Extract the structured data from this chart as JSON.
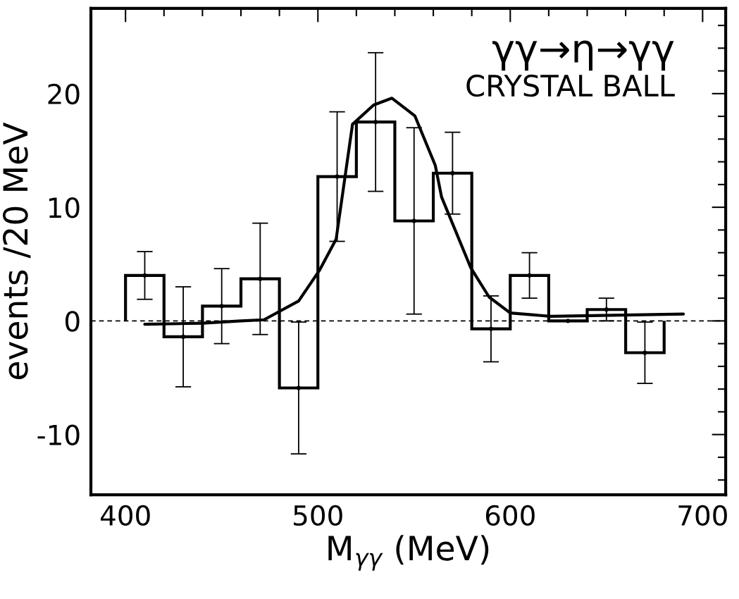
{
  "chart_data": {
    "type": "histogram",
    "xlabel": "M$_{γγ}$ (MeV)",
    "ylabel": "events /20 MeV",
    "annotations": [
      "γγ→η→γγ",
      "CRYSTAL BALL"
    ],
    "bins": [
      400,
      420,
      440,
      460,
      480,
      500,
      520,
      540,
      560,
      580,
      600,
      620,
      640,
      660,
      680
    ],
    "values": [
      4.0,
      -1.4,
      1.3,
      3.7,
      -5.9,
      12.7,
      17.5,
      8.8,
      13.0,
      -0.7,
      4.0,
      0.0,
      1.0,
      -2.8
    ],
    "color": "#000000",
    "series": [
      {
        "type": "scatter",
        "marker": "circle",
        "color": "#000000",
        "x": [
          410,
          430,
          450,
          470,
          490,
          510,
          530,
          550,
          570,
          590,
          610,
          630,
          650,
          670
        ],
        "values": [
          4.0,
          -1.4,
          1.3,
          3.7,
          -5.9,
          12.7,
          17.5,
          8.8,
          13.0,
          -0.7,
          4.0,
          0.0,
          1.0,
          -2.8
        ],
        "errors": [
          2.1,
          4.4,
          3.3,
          4.9,
          5.8,
          5.7,
          6.1,
          8.2,
          3.6,
          2.9,
          2.0,
          null,
          1.0,
          2.7
        ]
      },
      {
        "type": "line",
        "color": "#000000",
        "x": [
          410,
          440,
          460,
          472,
          490,
          501,
          509.5,
          518,
          529,
          538.5,
          550.4,
          561,
          564.3,
          579.4,
          589,
          600,
          621,
          690
        ],
        "values": [
          -0.3,
          -0.2,
          0.0,
          0.1,
          1.75,
          4.5,
          7.2,
          17.3,
          19.0,
          19.6,
          18.05,
          13.7,
          10.9,
          4.7,
          2.1,
          0.7,
          0.4,
          0.6
        ]
      }
    ],
    "ref_lines": [
      {
        "axis": "y",
        "value": 0,
        "line_style": "dashed",
        "color": "#000000"
      }
    ],
    "xlim": [
      382,
      712
    ],
    "ylim": [
      -15.3,
      27.5
    ],
    "xticks": [
      400,
      {
        "value": 420,
        "label": null
      },
      {
        "value": 440,
        "label": null
      },
      {
        "value": 460,
        "label": null
      },
      {
        "value": 480,
        "label": null
      },
      500,
      {
        "value": 520,
        "label": null
      },
      {
        "value": 540,
        "label": null
      },
      {
        "value": 560,
        "label": null
      },
      {
        "value": 580,
        "label": null
      },
      600,
      {
        "value": 620,
        "label": null
      },
      {
        "value": 640,
        "label": null
      },
      {
        "value": 660,
        "label": null
      },
      {
        "value": 680,
        "label": null
      },
      700
    ],
    "yticks": [
      {
        "value": -14,
        "label": null
      },
      {
        "value": -12,
        "label": null
      },
      -10,
      {
        "value": -8,
        "label": null
      },
      {
        "value": -6,
        "label": null
      },
      {
        "value": -4,
        "label": null
      },
      {
        "value": -2,
        "label": null
      },
      0,
      {
        "value": 2,
        "label": null
      },
      {
        "value": 4,
        "label": null
      },
      {
        "value": 6,
        "label": null
      },
      {
        "value": 8,
        "label": null
      },
      10,
      {
        "value": 12,
        "label": null
      },
      {
        "value": 14,
        "label": null
      },
      {
        "value": 16,
        "label": null
      },
      {
        "value": 18,
        "label": null
      },
      20,
      {
        "value": 22,
        "label": null
      },
      {
        "value": 24,
        "label": null
      },
      {
        "value": 26,
        "label": null
      }
    ],
    "grid": false,
    "legend": false
  }
}
